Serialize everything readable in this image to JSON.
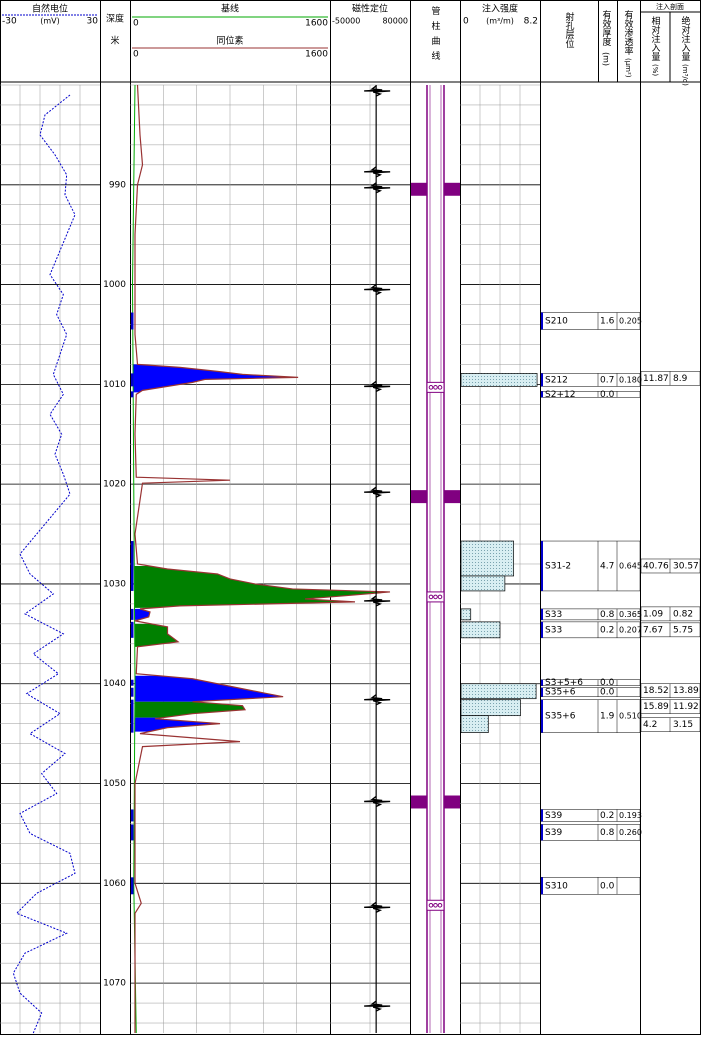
{
  "depth": {
    "label": "深度",
    "unit": "米",
    "ylim": [
      980,
      1075
    ],
    "ticks": [
      990,
      1000,
      1010,
      1020,
      1030,
      1040,
      1050,
      1060,
      1070
    ],
    "minor_step": 2
  },
  "sp": {
    "title": "自然电位",
    "min": -30,
    "unit": "(mV)",
    "max": 30,
    "color": "#0000cc",
    "divisions": 5,
    "depth": [
      981,
      983,
      985,
      987,
      989,
      991,
      993,
      995,
      997,
      999,
      1001,
      1003,
      1005,
      1007,
      1009,
      1011,
      1013,
      1015,
      1017,
      1019,
      1021,
      1023,
      1025,
      1027,
      1029,
      1031,
      1033,
      1035,
      1037,
      1039,
      1041,
      1043,
      1045,
      1047,
      1049,
      1051,
      1053,
      1055,
      1057,
      1059,
      1061,
      1063,
      1065,
      1067,
      1069,
      1071,
      1073,
      1075
    ],
    "values": [
      12,
      -3,
      -6,
      3,
      10,
      9,
      15,
      10,
      5,
      0,
      8,
      4,
      10,
      6,
      2,
      8,
      0,
      7,
      3,
      8,
      12,
      2,
      -8,
      -18,
      -12,
      2,
      -15,
      8,
      -10,
      5,
      -14,
      6,
      -12,
      9,
      -5,
      4,
      -18,
      -12,
      12,
      15,
      -8,
      -20,
      10,
      -15,
      -22,
      -18,
      -5,
      -10
    ]
  },
  "isotope": {
    "title": "基线",
    "min": 0,
    "max": 1600,
    "title2": "同位素",
    "min2": 0,
    "max2": 1600,
    "baseline_color": "#00aa00",
    "color": "#993333",
    "divisions": 6,
    "baseline_depth": [
      980,
      1000,
      1020,
      1040,
      1060,
      1075
    ],
    "baseline_values": [
      40,
      20,
      30,
      40,
      30,
      50
    ],
    "depth": [
      980,
      985,
      988,
      990,
      995,
      1005,
      1008,
      1008.3,
      1008.7,
      1009,
      1009.3,
      1009.5,
      1009.8,
      1010.2,
      1010.6,
      1011,
      1015,
      1019.3,
      1019.6,
      1019.9,
      1025,
      1028,
      1028.5,
      1029,
      1029.5,
      1030,
      1030.5,
      1030.8,
      1031.2,
      1031.5,
      1031.8,
      1032.2,
      1032.5,
      1032.8,
      1033.3,
      1033.7,
      1034.3,
      1035,
      1035.8,
      1036.3,
      1039,
      1039.5,
      1040,
      1040.5,
      1041,
      1041.3,
      1041.8,
      1042.2,
      1042.6,
      1043,
      1043.5,
      1044,
      1044.4,
      1045,
      1045.8,
      1046.3,
      1050,
      1060,
      1062,
      1063,
      1070,
      1075
    ],
    "values": [
      60,
      80,
      100,
      60,
      40,
      40,
      60,
      400,
      700,
      900,
      1345,
      600,
      500,
      300,
      100,
      50,
      40,
      50,
      800,
      100,
      40,
      60,
      300,
      700,
      800,
      1000,
      1300,
      2080,
      1700,
      1400,
      1800,
      400,
      80,
      160,
      150,
      40,
      300,
      300,
      385,
      60,
      50,
      500,
      700,
      900,
      1100,
      1225,
      500,
      900,
      920,
      500,
      200,
      720,
      300,
      80,
      880,
      100,
      40,
      40,
      90,
      40,
      40,
      40
    ],
    "fills": [
      {
        "top": 1008,
        "bottom": 1010.8,
        "color": "#0000ff"
      },
      {
        "top": 1028.2,
        "bottom": 1032.4,
        "color": "#008000"
      },
      {
        "top": 1032.5,
        "bottom": 1033.6,
        "color": "#0000ff"
      },
      {
        "top": 1034,
        "bottom": 1036.3,
        "color": "#008000"
      },
      {
        "top": 1039.2,
        "bottom": 1041.8,
        "color": "#0000ff"
      },
      {
        "top": 1041.8,
        "bottom": 1043.4,
        "color": "#008000"
      },
      {
        "top": 1043.4,
        "bottom": 1044.8,
        "color": "#0000ff"
      }
    ]
  },
  "magnetic": {
    "title": "磁性定位",
    "min": -50000,
    "max": 80000,
    "trace_value": 25000,
    "divisions": 2,
    "collars": [
      980.6,
      988.7,
      990.3,
      1000.5,
      1010.2,
      1020.8,
      1031.7,
      1041.6,
      1051.8,
      1062.4,
      1072.3
    ]
  },
  "tubing": {
    "title": "管柱曲线",
    "color": "#800080",
    "blocks": [
      {
        "top": 989.8,
        "bottom": 991.1
      },
      {
        "top": 1020.6,
        "bottom": 1021.9
      },
      {
        "top": 1051.2,
        "bottom": 1052.5
      }
    ],
    "perforations": [
      1010.3,
      1031.3,
      1062.2
    ]
  },
  "injection": {
    "title": "注入强度",
    "unit": "(m³/m)",
    "min": 0,
    "max": 8.2,
    "divisions": 4,
    "bars": [
      {
        "top": 1008.9,
        "bottom": 1010.2,
        "value": 7.9
      },
      {
        "top": 1025.7,
        "bottom": 1029.2,
        "value": 5.5
      },
      {
        "top": 1029.2,
        "bottom": 1030.7,
        "value": 4.6
      },
      {
        "top": 1032.5,
        "bottom": 1033.6,
        "value": 1.1
      },
      {
        "top": 1033.8,
        "bottom": 1035.4,
        "value": 4.1
      },
      {
        "top": 1040.0,
        "bottom": 1041.5,
        "value": 7.8
      },
      {
        "top": 1041.6,
        "bottom": 1043.2,
        "value": 6.2
      },
      {
        "top": 1043.2,
        "bottom": 1044.9,
        "value": 2.9
      }
    ]
  },
  "table": {
    "layer_title": "射孔层位",
    "thickness_title": "有效厚度",
    "thickness_unit": "(m)",
    "perm_title": "有效渗透率",
    "perm_unit": "(μm²)",
    "profile_title": "注入剖面",
    "rel_title": "相对注入量",
    "rel_unit": "(%)",
    "abs_title": "绝对注入量",
    "abs_unit": "(m³/d)"
  },
  "layers": [
    {
      "name": "S210",
      "top": 1002.8,
      "bottom": 1004.5,
      "thickness": "1.6",
      "perm": "0.205"
    },
    {
      "name": "S212",
      "top": 1008.9,
      "bottom": 1010.2,
      "thickness": "0.7",
      "perm": "0.180"
    },
    {
      "name": "S2+12",
      "top": 1010.7,
      "bottom": 1011.3,
      "thickness": "0.0",
      "perm": null
    },
    {
      "name": "S31-2",
      "top": 1025.7,
      "bottom": 1030.7,
      "thickness": "4.7",
      "perm": "0.645"
    },
    {
      "name": "S33",
      "top": 1032.5,
      "bottom": 1033.6,
      "thickness": "0.8",
      "perm": "0.365"
    },
    {
      "name": "S33",
      "top": 1033.8,
      "bottom": 1035.4,
      "thickness": "0.2",
      "perm": "0.207"
    },
    {
      "name": "S3+5+6",
      "top": 1039.6,
      "bottom": 1040.2,
      "thickness": "0.0",
      "perm": null
    },
    {
      "name": "S35+6",
      "top": 1040.4,
      "bottom": 1041.3,
      "thickness": "0.0",
      "perm": null
    },
    {
      "name": "S35+6",
      "top": 1041.6,
      "bottom": 1044.9,
      "thickness": "1.9",
      "perm": "0.510"
    },
    {
      "name": "S39",
      "top": 1052.6,
      "bottom": 1053.8,
      "thickness": "0.2",
      "perm": "0.193"
    },
    {
      "name": "S39",
      "top": 1054.1,
      "bottom": 1055.7,
      "thickness": "0.8",
      "perm": "0.260"
    },
    {
      "name": "S310",
      "top": 1059.4,
      "bottom": 1061.1,
      "thickness": "0.0",
      "perm": null
    }
  ],
  "profile": [
    {
      "depth": 1009.4,
      "rel": "11.87",
      "abs": "8.9"
    },
    {
      "depth": 1028.2,
      "rel": "40.76",
      "abs": "30.57"
    },
    {
      "depth": 1033.0,
      "rel": "1.09",
      "abs": "0.82"
    },
    {
      "depth": 1034.6,
      "rel": "7.67",
      "abs": "5.75"
    },
    {
      "depth": 1040.7,
      "rel": "18.52",
      "abs": "13.89"
    },
    {
      "depth": 1042.3,
      "rel": "15.89",
      "abs": "11.92"
    },
    {
      "depth": 1044.1,
      "rel": "4.2",
      "abs": "3.15"
    }
  ]
}
